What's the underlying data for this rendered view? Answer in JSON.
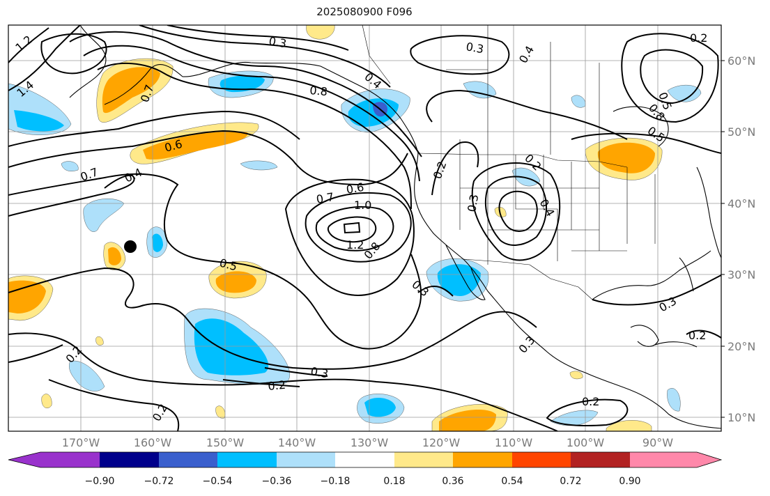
{
  "title": "2025080900 F096",
  "lat_labels": [
    "60°N",
    "50°N",
    "40°N",
    "30°N",
    "20°N",
    "10°N"
  ],
  "lon_labels": [
    "170°W",
    "160°W",
    "150°W",
    "140°W",
    "130°W",
    "120°W",
    "110°W",
    "100°W",
    "90°W"
  ],
  "contour_labels": [
    "1.2",
    "1.4",
    "0.3",
    "0.3",
    "0.4",
    "0.8",
    "0.4",
    "0.7",
    "0.6",
    "0.7",
    "0.4",
    "1.0",
    "0.7",
    "0.6",
    "1.2",
    "0.8",
    "0.5",
    "0.5",
    "0.2",
    "0.3",
    "0.2",
    "0.4",
    "0.2",
    "0.3",
    "0.3",
    "0.2",
    "0.2",
    "0.2",
    "0.3",
    "0.3",
    "0.2",
    "0.8",
    "0.5",
    "0.2"
  ],
  "colorbar": {
    "ticks": [
      "−0.90",
      "−0.72",
      "−0.54",
      "−0.36",
      "−0.18",
      "0.18",
      "0.36",
      "0.54",
      "0.72",
      "0.90"
    ],
    "colors": [
      "#9932cc",
      "#00008b",
      "#3a5fcd",
      "#00bfff",
      "#aee0fa",
      "#ffffff",
      "#ffe98a",
      "#ffa500",
      "#ff4500",
      "#b22222",
      "#ff88aa"
    ]
  },
  "fill_colors": {
    "neg_light": "#aee0fa",
    "neg_mid": "#00bfff",
    "neg_strong": "#3a5fcd",
    "neg_max": "#9932cc",
    "pos_light": "#ffe98a",
    "pos_mid": "#ffa500"
  }
}
